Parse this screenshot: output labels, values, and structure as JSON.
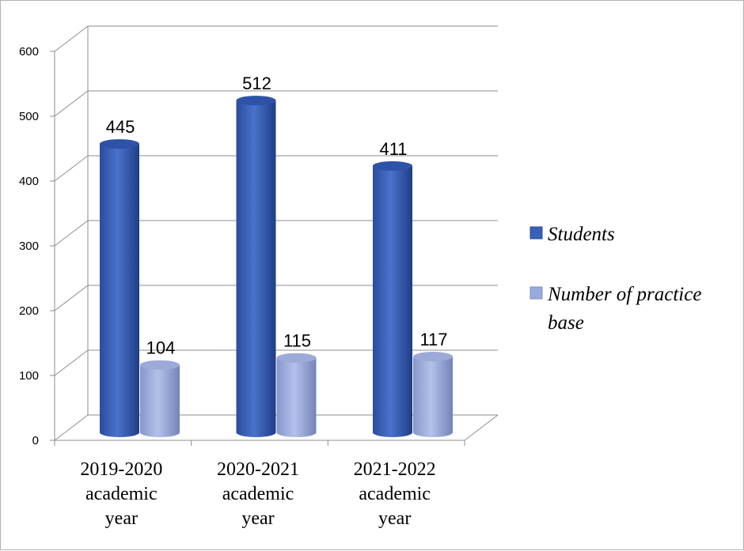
{
  "chart_data": {
    "type": "bar",
    "style": "3d-cylinder",
    "categories": [
      [
        "2019-2020",
        "academic",
        "year"
      ],
      [
        "2020-2021",
        "academic",
        "year"
      ],
      [
        "2021-2022",
        "academic",
        "year"
      ]
    ],
    "series": [
      {
        "name": "Students",
        "values": [
          445,
          512,
          411
        ],
        "color": "#3a5fb8"
      },
      {
        "name": "Number of practice base",
        "name_lines": [
          "Number of practice",
          "base"
        ],
        "values": [
          104,
          115,
          117
        ],
        "color": "#99aadd"
      }
    ],
    "data_labels": [
      [
        "445",
        "512",
        "411"
      ],
      [
        "104",
        "115",
        "117"
      ]
    ],
    "ylim": [
      0,
      600
    ],
    "yticks": [
      0,
      100,
      200,
      300,
      400,
      500,
      600
    ],
    "ytick_labels": [
      "0",
      "100",
      "200",
      "300",
      "400",
      "500",
      "600"
    ],
    "grid": true,
    "legend_position": "right"
  }
}
